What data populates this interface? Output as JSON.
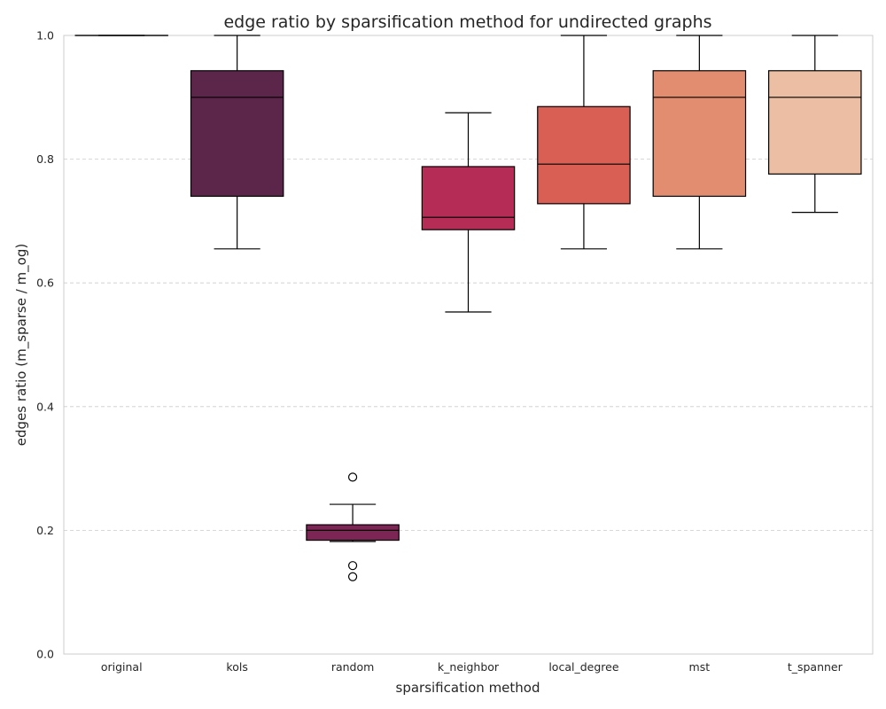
{
  "chart_data": {
    "type": "box",
    "title": "edge ratio by sparsification method for undirected graphs",
    "xlabel": "sparsification method",
    "ylabel": "edges ratio (m_sparse / m_og)",
    "ylim": [
      0,
      1
    ],
    "yticks": [
      "0.0",
      "0.2",
      "0.4",
      "0.6",
      "0.8",
      "1.0"
    ],
    "ytick_values": [
      0,
      0.2,
      0.4,
      0.6,
      0.8,
      1.0
    ],
    "grid": "y",
    "categories": [
      "original",
      "kols",
      "random",
      "k_neighbor",
      "local_degree",
      "mst",
      "t_spanner"
    ],
    "boxes": [
      {
        "category": "original",
        "whisker_low": 1.0,
        "q1": 1.0,
        "median": 1.0,
        "q3": 1.0,
        "whisker_high": 1.0,
        "outliers": [],
        "color": "#999999"
      },
      {
        "category": "kols",
        "whisker_low": 0.655,
        "q1": 0.74,
        "median": 0.9,
        "q3": 0.943,
        "whisker_high": 1.0,
        "outliers": [],
        "color": "#5b264a"
      },
      {
        "category": "random",
        "whisker_low": 0.182,
        "q1": 0.184,
        "median": 0.2,
        "q3": 0.209,
        "whisker_high": 0.242,
        "outliers": [
          0.286,
          0.143,
          0.125
        ],
        "color": "#7d2555"
      },
      {
        "category": "k_neighbor",
        "whisker_low": 0.553,
        "q1": 0.686,
        "median": 0.706,
        "q3": 0.788,
        "whisker_high": 0.875,
        "outliers": [],
        "color": "#b52d57"
      },
      {
        "category": "local_degree",
        "whisker_low": 0.655,
        "q1": 0.728,
        "median": 0.792,
        "q3": 0.885,
        "whisker_high": 1.0,
        "outliers": [],
        "color": "#d95f55"
      },
      {
        "category": "mst",
        "whisker_low": 0.655,
        "q1": 0.74,
        "median": 0.9,
        "q3": 0.943,
        "whisker_high": 1.0,
        "outliers": [],
        "color": "#e28d70"
      },
      {
        "category": "t_spanner",
        "whisker_low": 0.714,
        "q1": 0.776,
        "median": 0.9,
        "q3": 0.943,
        "whisker_high": 1.0,
        "outliers": [],
        "color": "#ecbfa5"
      }
    ]
  }
}
